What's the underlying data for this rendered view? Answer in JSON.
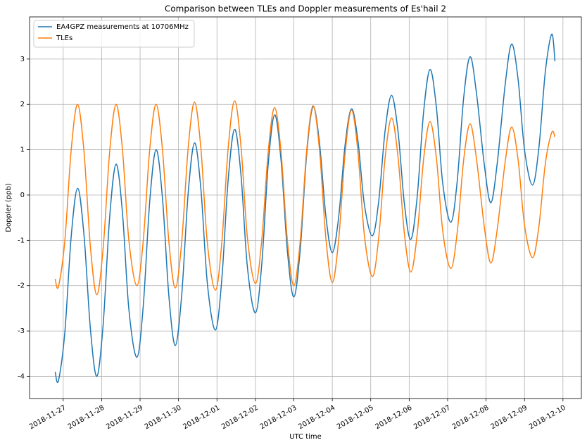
{
  "chart_data": {
    "type": "line",
    "title": "Comparison between TLEs and Doppler measurements of Es'hail 2",
    "x_label": "UTC time",
    "y_label": "Doppler (ppb)",
    "x": [
      "2018-11-26T19:00",
      "2018-11-26T21:00",
      "2018-11-27T01:00",
      "2018-11-27T05:00",
      "2018-11-27T09:00",
      "2018-11-27T13:00",
      "2018-11-27T17:00",
      "2018-11-27T21:00",
      "2018-11-28T01:00",
      "2018-11-28T05:00",
      "2018-11-28T09:00",
      "2018-11-28T13:00",
      "2018-11-28T17:00",
      "2018-11-28T22:00",
      "2018-11-29T02:00",
      "2018-11-29T06:00",
      "2018-11-29T10:00",
      "2018-11-29T14:00",
      "2018-11-29T18:00",
      "2018-11-29T22:00",
      "2018-11-30T02:00",
      "2018-11-30T06:00",
      "2018-11-30T10:00",
      "2018-11-30T14:00",
      "2018-11-30T18:00",
      "2018-11-30T23:00",
      "2018-12-01T03:00",
      "2018-12-01T07:00",
      "2018-12-01T11:00",
      "2018-12-01T15:00",
      "2018-12-01T19:00",
      "2018-12-02T00:00",
      "2018-12-02T04:00",
      "2018-12-02T08:00",
      "2018-12-02T12:00",
      "2018-12-02T16:00",
      "2018-12-02T20:00",
      "2018-12-03T00:00",
      "2018-12-03T04:00",
      "2018-12-03T08:00",
      "2018-12-03T12:00",
      "2018-12-03T16:00",
      "2018-12-03T20:00",
      "2018-12-04T00:00",
      "2018-12-04T04:00",
      "2018-12-04T08:00",
      "2018-12-04T12:00",
      "2018-12-04T16:00",
      "2018-12-04T20:00",
      "2018-12-05T01:00",
      "2018-12-05T05:00",
      "2018-12-05T09:00",
      "2018-12-05T13:00",
      "2018-12-05T17:00",
      "2018-12-05T21:00",
      "2018-12-06T01:00",
      "2018-12-06T05:00",
      "2018-12-06T09:00",
      "2018-12-06T13:00",
      "2018-12-06T17:00",
      "2018-12-06T21:00",
      "2018-12-07T02:00",
      "2018-12-07T06:00",
      "2018-12-07T10:00",
      "2018-12-07T14:00",
      "2018-12-07T18:00",
      "2018-12-07T23:00",
      "2018-12-08T03:00",
      "2018-12-08T07:00",
      "2018-12-08T12:00",
      "2018-12-08T16:00",
      "2018-12-08T20:00",
      "2018-12-09T00:00",
      "2018-12-09T05:00",
      "2018-12-09T09:00",
      "2018-12-09T13:00",
      "2018-12-09T17:00",
      "2018-12-09T19:00"
    ],
    "series": [
      {
        "name": "EA4GPZ measurements at 10706MHz",
        "color": "#1f77b4",
        "values": [
          -3.9,
          -4.1,
          -3.04,
          -0.91,
          0.15,
          -0.89,
          -2.96,
          -4.0,
          -2.83,
          -0.49,
          0.68,
          -0.39,
          -2.52,
          -3.58,
          -2.44,
          -0.15,
          1.0,
          -0.08,
          -2.24,
          -3.32,
          -2.2,
          0.03,
          1.15,
          0.12,
          -1.95,
          -2.98,
          -1.87,
          0.34,
          1.45,
          0.44,
          -1.59,
          -2.6,
          -1.51,
          0.68,
          1.77,
          0.77,
          -1.25,
          -2.25,
          -1.2,
          0.9,
          1.95,
          1.15,
          -0.47,
          -1.27,
          -0.48,
          1.11,
          1.9,
          1.2,
          -0.2,
          -0.9,
          -0.13,
          1.43,
          2.2,
          1.41,
          -0.19,
          -0.98,
          -0.04,
          1.83,
          2.77,
          1.93,
          0.24,
          -0.6,
          0.31,
          2.14,
          3.05,
          2.25,
          0.64,
          -0.17,
          0.71,
          2.46,
          3.33,
          2.55,
          1.0,
          0.22,
          1.05,
          2.72,
          3.55,
          2.95
        ]
      },
      {
        "name": "TLEs",
        "color": "#ff7f0e",
        "values": [
          -1.85,
          -2.02,
          -1.02,
          1.0,
          2.0,
          0.95,
          -1.15,
          -2.2,
          -1.15,
          0.95,
          2.0,
          1.0,
          -1.0,
          -2.0,
          -1.0,
          1.0,
          2.0,
          0.99,
          -1.04,
          -2.05,
          -1.03,
          1.03,
          2.05,
          1.01,
          -1.06,
          -2.1,
          -1.06,
          1.04,
          2.08,
          1.07,
          -0.94,
          -1.95,
          -0.98,
          0.96,
          1.93,
          0.95,
          -1.02,
          -2.0,
          -1.01,
          0.98,
          1.97,
          1.0,
          -0.96,
          -1.93,
          -0.98,
          0.92,
          1.87,
          0.95,
          -0.88,
          -1.8,
          -0.93,
          0.83,
          1.7,
          0.85,
          -0.85,
          -1.7,
          -0.87,
          0.79,
          1.62,
          0.81,
          -0.81,
          -1.62,
          -0.82,
          0.77,
          1.57,
          0.8,
          -0.73,
          -1.5,
          -0.75,
          0.75,
          1.5,
          0.78,
          -0.66,
          -1.38,
          -0.69,
          0.69,
          1.38,
          1.28
        ]
      }
    ],
    "xlim": [
      "2018-11-26T03:00",
      "2018-12-10T11:30"
    ],
    "xticks": [
      "2018-11-27",
      "2018-11-28",
      "2018-11-29",
      "2018-11-30",
      "2018-12-01",
      "2018-12-02",
      "2018-12-03",
      "2018-12-04",
      "2018-12-05",
      "2018-12-06",
      "2018-12-07",
      "2018-12-08",
      "2018-12-09",
      "2018-12-10"
    ],
    "ylim": [
      -4.49,
      3.93
    ],
    "yticks": [
      -4,
      -3,
      -2,
      -1,
      0,
      1,
      2,
      3
    ],
    "grid": true,
    "legend": "upper left"
  }
}
